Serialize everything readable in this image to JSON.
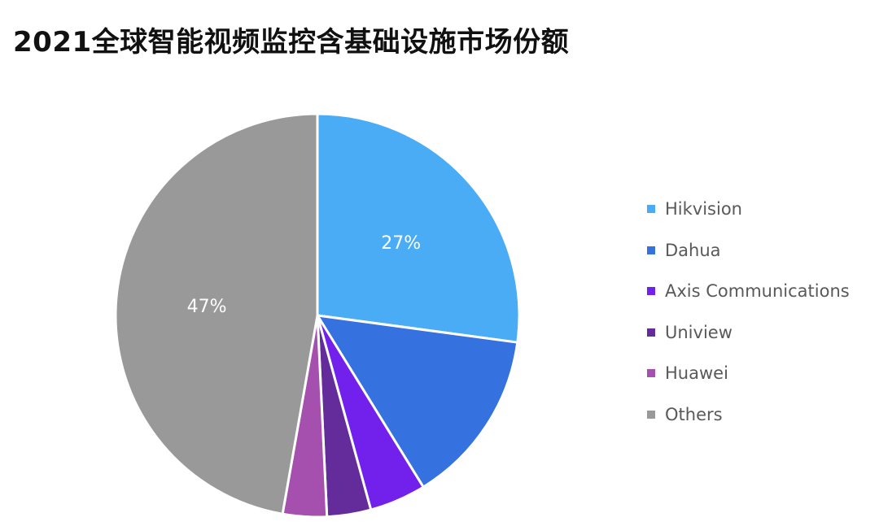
{
  "chart_data": {
    "type": "pie",
    "title": "2021全球智能视频监控含基础设施市场份额",
    "slices": [
      {
        "label": "Hikvision",
        "value": 27,
        "color": "#4BACF6",
        "data_label": "27%"
      },
      {
        "label": "Dahua",
        "value": 14,
        "color": "#3572DF",
        "data_label": ""
      },
      {
        "label": "Axis Communications",
        "value": 4.5,
        "color": "#7121EB",
        "data_label": ""
      },
      {
        "label": "Uniview",
        "value": 3.5,
        "color": "#642C9A",
        "data_label": ""
      },
      {
        "label": "Huawei",
        "value": 3.5,
        "color": "#A54FAE",
        "data_label": ""
      },
      {
        "label": "Others",
        "value": 47,
        "color": "#999999",
        "data_label": "47%"
      }
    ],
    "legend_position": "right"
  }
}
